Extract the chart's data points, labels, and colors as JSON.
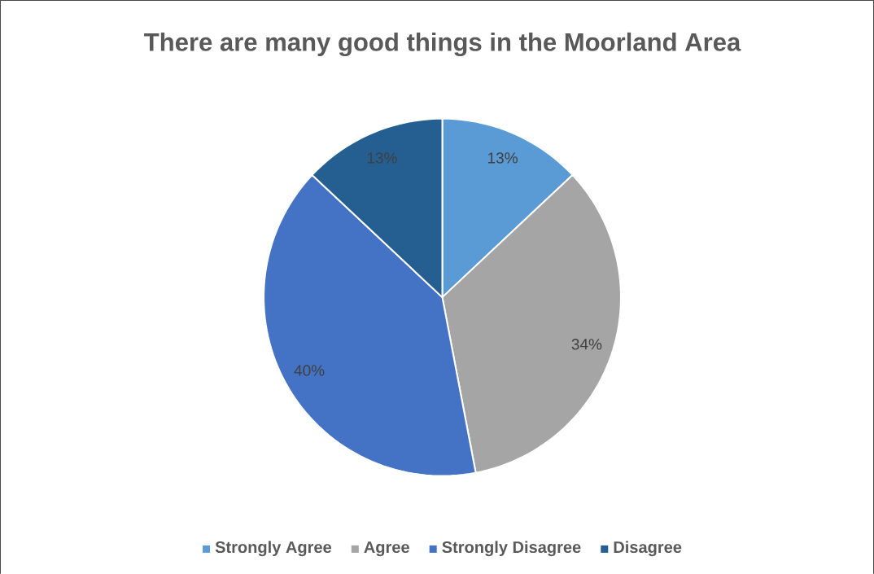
{
  "chart_data": {
    "type": "pie",
    "title": "There are many good things in the Moorland Area",
    "categories": [
      "Strongly Agree",
      "Agree",
      "Strongly Disagree",
      "Disagree"
    ],
    "values": [
      13,
      34,
      40,
      13
    ],
    "value_labels": [
      "13%",
      "34%",
      "40%",
      "13%"
    ],
    "colors": [
      "#5b9bd5",
      "#a5a5a5",
      "#4472c4",
      "#255e91"
    ],
    "legend": "bottom"
  }
}
